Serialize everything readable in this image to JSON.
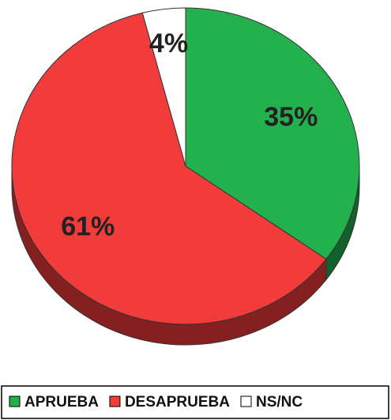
{
  "chart_data": {
    "type": "pie",
    "categories": [
      "APRUEBA",
      "DESAPRUEBA",
      "NS/NC"
    ],
    "values": [
      35,
      61,
      4
    ],
    "value_labels": [
      "35%",
      "61%",
      "4%"
    ],
    "colors": [
      "#22b14c",
      "#f23b3b",
      "#ffffff"
    ],
    "legend": "bottom"
  }
}
